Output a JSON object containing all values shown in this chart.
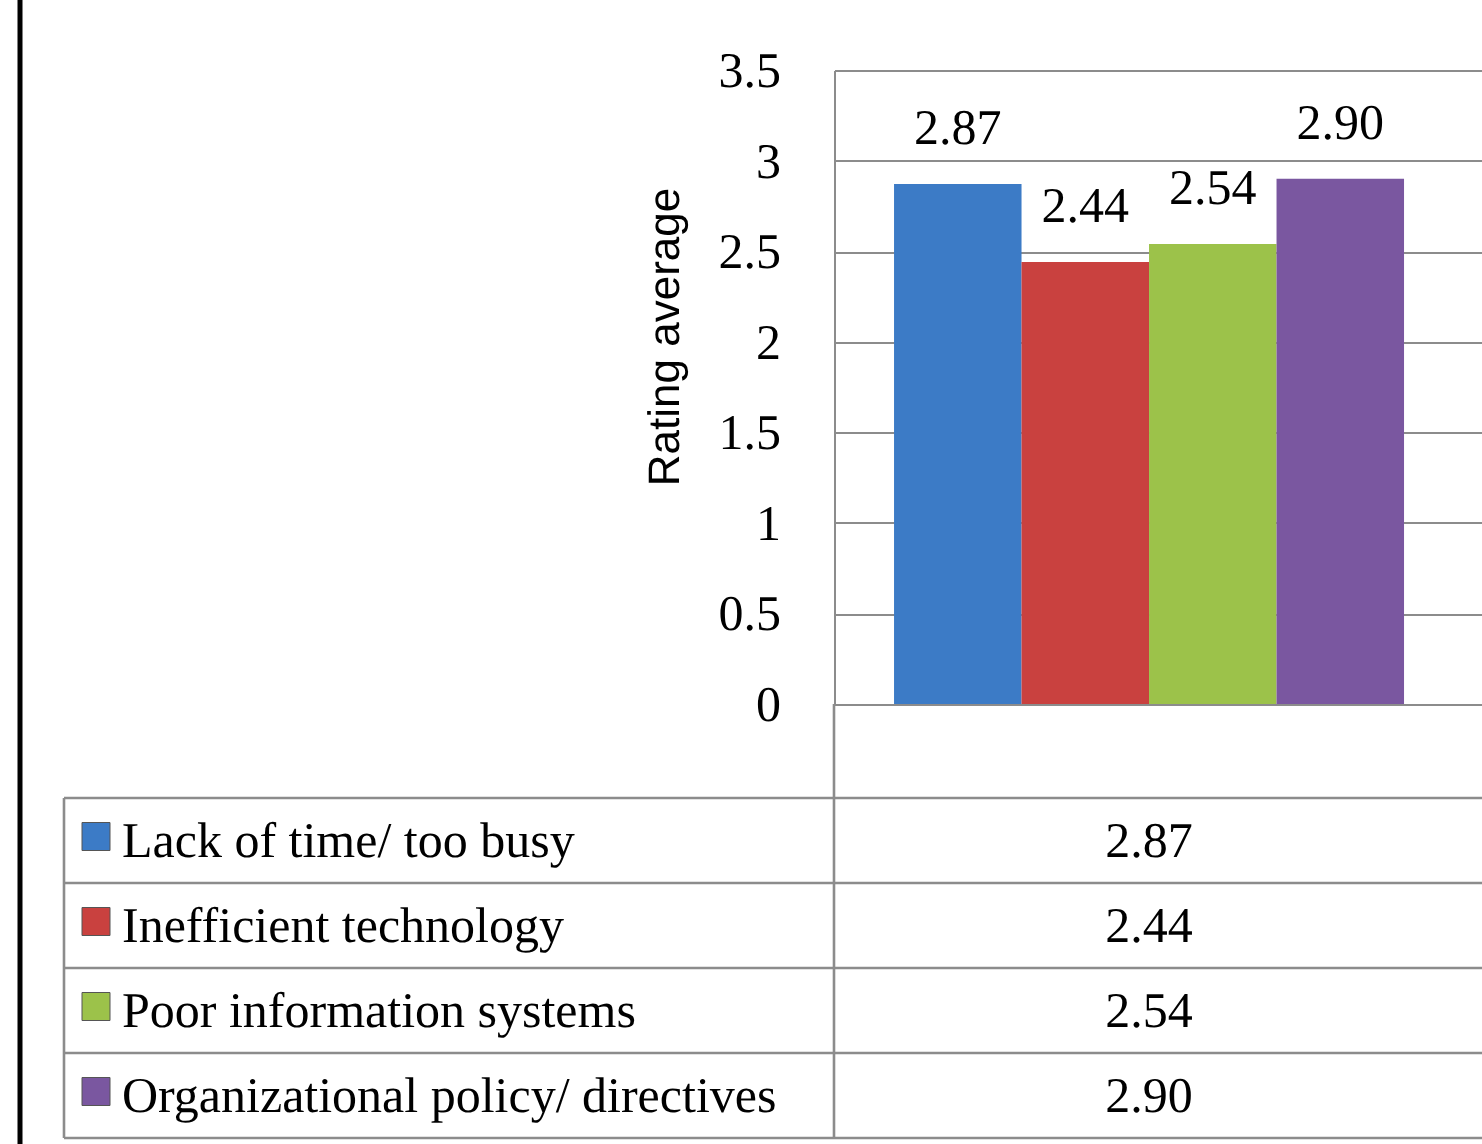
{
  "chart_data": {
    "type": "bar",
    "ylabel": "Rating average",
    "categories": [
      null
    ],
    "series": [
      {
        "name": "Lack of time/ too busy",
        "color": "#3c7bc6",
        "values": [
          2.87
        ],
        "value_labels": [
          "2.87"
        ]
      },
      {
        "name": "Inefficient technology",
        "color": "#c9413f",
        "values": [
          2.44
        ],
        "value_labels": [
          "2.44"
        ]
      },
      {
        "name": "Poor information systems",
        "color": "#9cc24a",
        "values": [
          2.54
        ],
        "value_labels": [
          "2.54"
        ]
      },
      {
        "name": "Organizational policy/ directives",
        "color": "#7a57a0",
        "values": [
          2.9
        ],
        "value_labels": [
          "2.90"
        ]
      }
    ],
    "ylim": [
      0,
      3.5
    ],
    "yticks": [
      0,
      0.5,
      1,
      1.5,
      2,
      2.5,
      3,
      3.5
    ],
    "grid": "y",
    "legend": "bottom"
  }
}
